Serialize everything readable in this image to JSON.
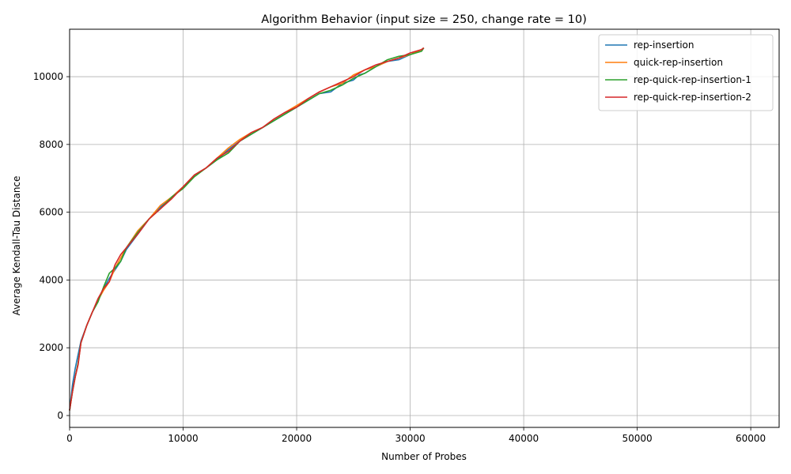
{
  "chart_data": {
    "type": "line",
    "title": "Algorithm Behavior (input size = 250, change rate = 10)",
    "xlabel": "Number of Probes",
    "ylabel": "Average Kendall-Tau Distance",
    "xlim": [
      0,
      62500
    ],
    "ylim": [
      -350,
      11400
    ],
    "x_ticks": [
      0,
      10000,
      20000,
      30000,
      40000,
      50000,
      60000
    ],
    "x_tick_labels": [
      "0",
      "10000",
      "20000",
      "30000",
      "40000",
      "50000",
      "60000"
    ],
    "y_ticks": [
      0,
      2000,
      4000,
      6000,
      8000,
      10000
    ],
    "y_tick_labels": [
      "0",
      "2000",
      "4000",
      "6000",
      "8000",
      "10000"
    ],
    "grid": true,
    "legend_position": "top-right",
    "series": [
      {
        "name": "rep-insertion",
        "color": "#1f77b4",
        "x": [
          0,
          250,
          500,
          750,
          1000,
          1500,
          2000,
          2500,
          3000,
          3500,
          4000,
          4500,
          5000,
          6000,
          7000,
          8000,
          9000,
          10000,
          11000,
          12000,
          13000,
          14000,
          15000,
          16000,
          17000,
          18000,
          19000,
          20000,
          21000,
          22000,
          23000,
          24000,
          25000,
          25500,
          26000,
          27000,
          28000,
          29000,
          30000,
          31000,
          31200
        ],
        "y": [
          150,
          900,
          1400,
          1800,
          2200,
          2650,
          3050,
          3400,
          3750,
          4050,
          4300,
          4550,
          4900,
          5350,
          5800,
          6150,
          6450,
          6750,
          7100,
          7300,
          7550,
          7850,
          8100,
          8300,
          8500,
          8700,
          8900,
          9100,
          9300,
          9500,
          9550,
          9800,
          9900,
          10050,
          10100,
          10300,
          10450,
          10500,
          10650,
          10800,
          10850
        ]
      },
      {
        "name": "quick-rep-insertion",
        "color": "#ff7f0e",
        "x": [
          0,
          250,
          500,
          750,
          1000,
          1500,
          2000,
          2500,
          3000,
          3500,
          4000,
          4500,
          5000,
          6000,
          7000,
          8000,
          9000,
          10000,
          11000,
          12000,
          13000,
          14000,
          15000,
          16000,
          17000,
          18000,
          19000,
          20000,
          21000,
          22000,
          23000,
          24000,
          25000,
          26000,
          27000,
          28000,
          29000,
          30000,
          31000,
          31200
        ],
        "y": [
          150,
          700,
          1150,
          1550,
          2150,
          2650,
          3050,
          3400,
          3700,
          3950,
          4350,
          4650,
          4950,
          5450,
          5800,
          6200,
          6450,
          6750,
          7100,
          7300,
          7600,
          7900,
          8150,
          8350,
          8500,
          8750,
          8950,
          9150,
          9350,
          9550,
          9700,
          9800,
          10050,
          10200,
          10300,
          10450,
          10550,
          10650,
          10800,
          10850
        ]
      },
      {
        "name": "rep-quick-rep-insertion-1",
        "color": "#2ca02c",
        "x": [
          0,
          250,
          500,
          750,
          1000,
          1500,
          2000,
          2500,
          3000,
          3500,
          4000,
          4500,
          5000,
          6000,
          7000,
          8000,
          9000,
          10000,
          11000,
          12000,
          13000,
          14000,
          15000,
          16000,
          17000,
          18000,
          19000,
          20000,
          21000,
          22000,
          23000,
          24000,
          25000,
          26000,
          27000,
          28000,
          29000,
          30000,
          31000,
          31200
        ],
        "y": [
          150,
          700,
          1150,
          1550,
          2150,
          2650,
          3050,
          3350,
          3800,
          4200,
          4350,
          4550,
          4950,
          5400,
          5800,
          6100,
          6450,
          6700,
          7050,
          7300,
          7550,
          7750,
          8100,
          8300,
          8500,
          8700,
          8900,
          9100,
          9300,
          9500,
          9600,
          9750,
          9950,
          10100,
          10300,
          10500,
          10600,
          10650,
          10750,
          10850
        ]
      },
      {
        "name": "rep-quick-rep-insertion-2",
        "color": "#d62728",
        "x": [
          0,
          250,
          500,
          750,
          1000,
          1500,
          2000,
          2500,
          3000,
          3500,
          4000,
          4500,
          5000,
          6000,
          7000,
          8000,
          9000,
          10000,
          11000,
          12000,
          13000,
          14000,
          15000,
          16000,
          17000,
          18000,
          19000,
          20000,
          21000,
          22000,
          23000,
          24000,
          25000,
          26000,
          27000,
          28000,
          29000,
          30000,
          31000,
          31200
        ],
        "y": [
          150,
          700,
          1150,
          1500,
          2150,
          2650,
          3050,
          3450,
          3750,
          3950,
          4450,
          4750,
          4950,
          5350,
          5800,
          6100,
          6400,
          6750,
          7100,
          7300,
          7600,
          7800,
          8100,
          8350,
          8500,
          8750,
          8950,
          9100,
          9350,
          9550,
          9700,
          9850,
          10000,
          10200,
          10350,
          10450,
          10550,
          10700,
          10800,
          10850
        ]
      }
    ]
  }
}
